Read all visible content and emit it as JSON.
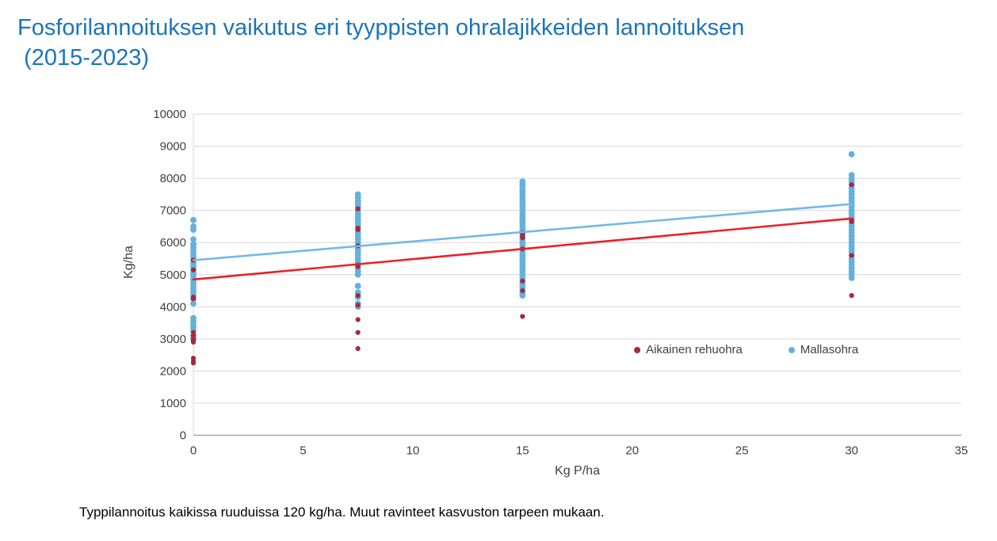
{
  "title": {
    "line1": "Fosforilannoituksen vaikutus eri tyyppisten ohralajikkeiden lannoituksen",
    "line2": " (2015-2023)"
  },
  "footer": "Typpilannoitus kaikissa ruuduissa 120 kg/ha. Muut ravinteet kasvuston tarpeen mukaan.",
  "colors": {
    "title_text": "#1B75BC",
    "axis_text": "#404040",
    "gridline": "#D9D9D9",
    "axis_line": "#A6A6A6",
    "footer_text": "#000000"
  },
  "chart_data": {
    "type": "scatter",
    "title": "Fosforilannoituksen vaikutus eri tyyppisten ohralajikkeiden lannoituksen (2015-2023)",
    "xlabel": "Kg P/ha",
    "ylabel": "Kg/ha",
    "xlim": [
      0,
      35
    ],
    "ylim": [
      0,
      10000
    ],
    "x_ticks": [
      0,
      5,
      10,
      15,
      20,
      25,
      30,
      35
    ],
    "y_ticks": [
      0,
      1000,
      2000,
      3000,
      4000,
      5000,
      6000,
      7000,
      8000,
      9000,
      10000
    ],
    "grid": "horizontal",
    "legend_position": "inside-right-middle",
    "series": [
      {
        "name": "Aikainen rehuohra",
        "color": "#A52A3C",
        "marker_radius": 3.1,
        "points": [
          {
            "x": 0,
            "ys": [
              5450,
              5150,
              4300,
              4250,
              3200,
              3100,
              3000,
              2950,
              2900,
              2400,
              2300,
              2250
            ]
          },
          {
            "x": 7.5,
            "ys": [
              7050,
              6450,
              6400,
              5900,
              5300,
              5250,
              4350,
              4050,
              3600,
              3200,
              2700
            ]
          },
          {
            "x": 15,
            "ys": [
              6300,
              6250,
              6150,
              5800,
              4800,
              4500,
              3700
            ]
          },
          {
            "x": 30,
            "ys": [
              7800,
              6700,
              6650,
              5600,
              4350
            ]
          }
        ]
      },
      {
        "name": "Mallasohra",
        "color": "#63B1DD",
        "marker_radius": 3.9,
        "points": [
          {
            "x": 0,
            "ys": [
              6700,
              6500,
              6400,
              6100,
              5950,
              5850,
              5750,
              5650,
              5550,
              5450,
              5350,
              5250,
              5150,
              5050,
              4950,
              4850,
              4750,
              4650,
              4550,
              4450,
              4350,
              4250,
              4100,
              3650,
              3550,
              3450,
              3350,
              3250,
              3100,
              3000
            ]
          },
          {
            "x": 7.5,
            "ys": [
              7500,
              7400,
              7300,
              7200,
              7100,
              7000,
              6900,
              6800,
              6700,
              6600,
              6500,
              6400,
              6300,
              6200,
              6100,
              6000,
              5900,
              5800,
              5700,
              5600,
              5500,
              5400,
              5300,
              5200,
              5100,
              5000,
              4650,
              4450,
              4350,
              4300,
              4100,
              4000
            ]
          },
          {
            "x": 15,
            "ys": [
              7900,
              7800,
              7700,
              7600,
              7500,
              7400,
              7300,
              7200,
              7100,
              7000,
              6900,
              6800,
              6700,
              6600,
              6500,
              6400,
              6300,
              6200,
              6100,
              6000,
              5900,
              5800,
              5700,
              5600,
              5500,
              5400,
              5300,
              5200,
              5100,
              5000,
              4900,
              4800,
              4700,
              4600,
              4500,
              4400,
              4350
            ]
          },
          {
            "x": 30,
            "ys": [
              8750,
              8100,
              8000,
              7900,
              7800,
              7700,
              7600,
              7500,
              7400,
              7300,
              7200,
              7100,
              7000,
              6900,
              6800,
              6700,
              6600,
              6500,
              6400,
              6300,
              6200,
              6100,
              6000,
              5900,
              5800,
              5700,
              5600,
              5500,
              5400,
              5300,
              5200,
              5100,
              5000,
              4900
            ]
          }
        ]
      }
    ],
    "trendlines": [
      {
        "series": "Mallasohra",
        "color": "#74B9E6",
        "x1": 0,
        "y1": 5450,
        "x2": 30,
        "y2": 7200
      },
      {
        "series": "Aikainen rehuohra",
        "color": "#EB2028",
        "x1": 0,
        "y1": 4850,
        "x2": 30,
        "y2": 6750
      }
    ]
  }
}
